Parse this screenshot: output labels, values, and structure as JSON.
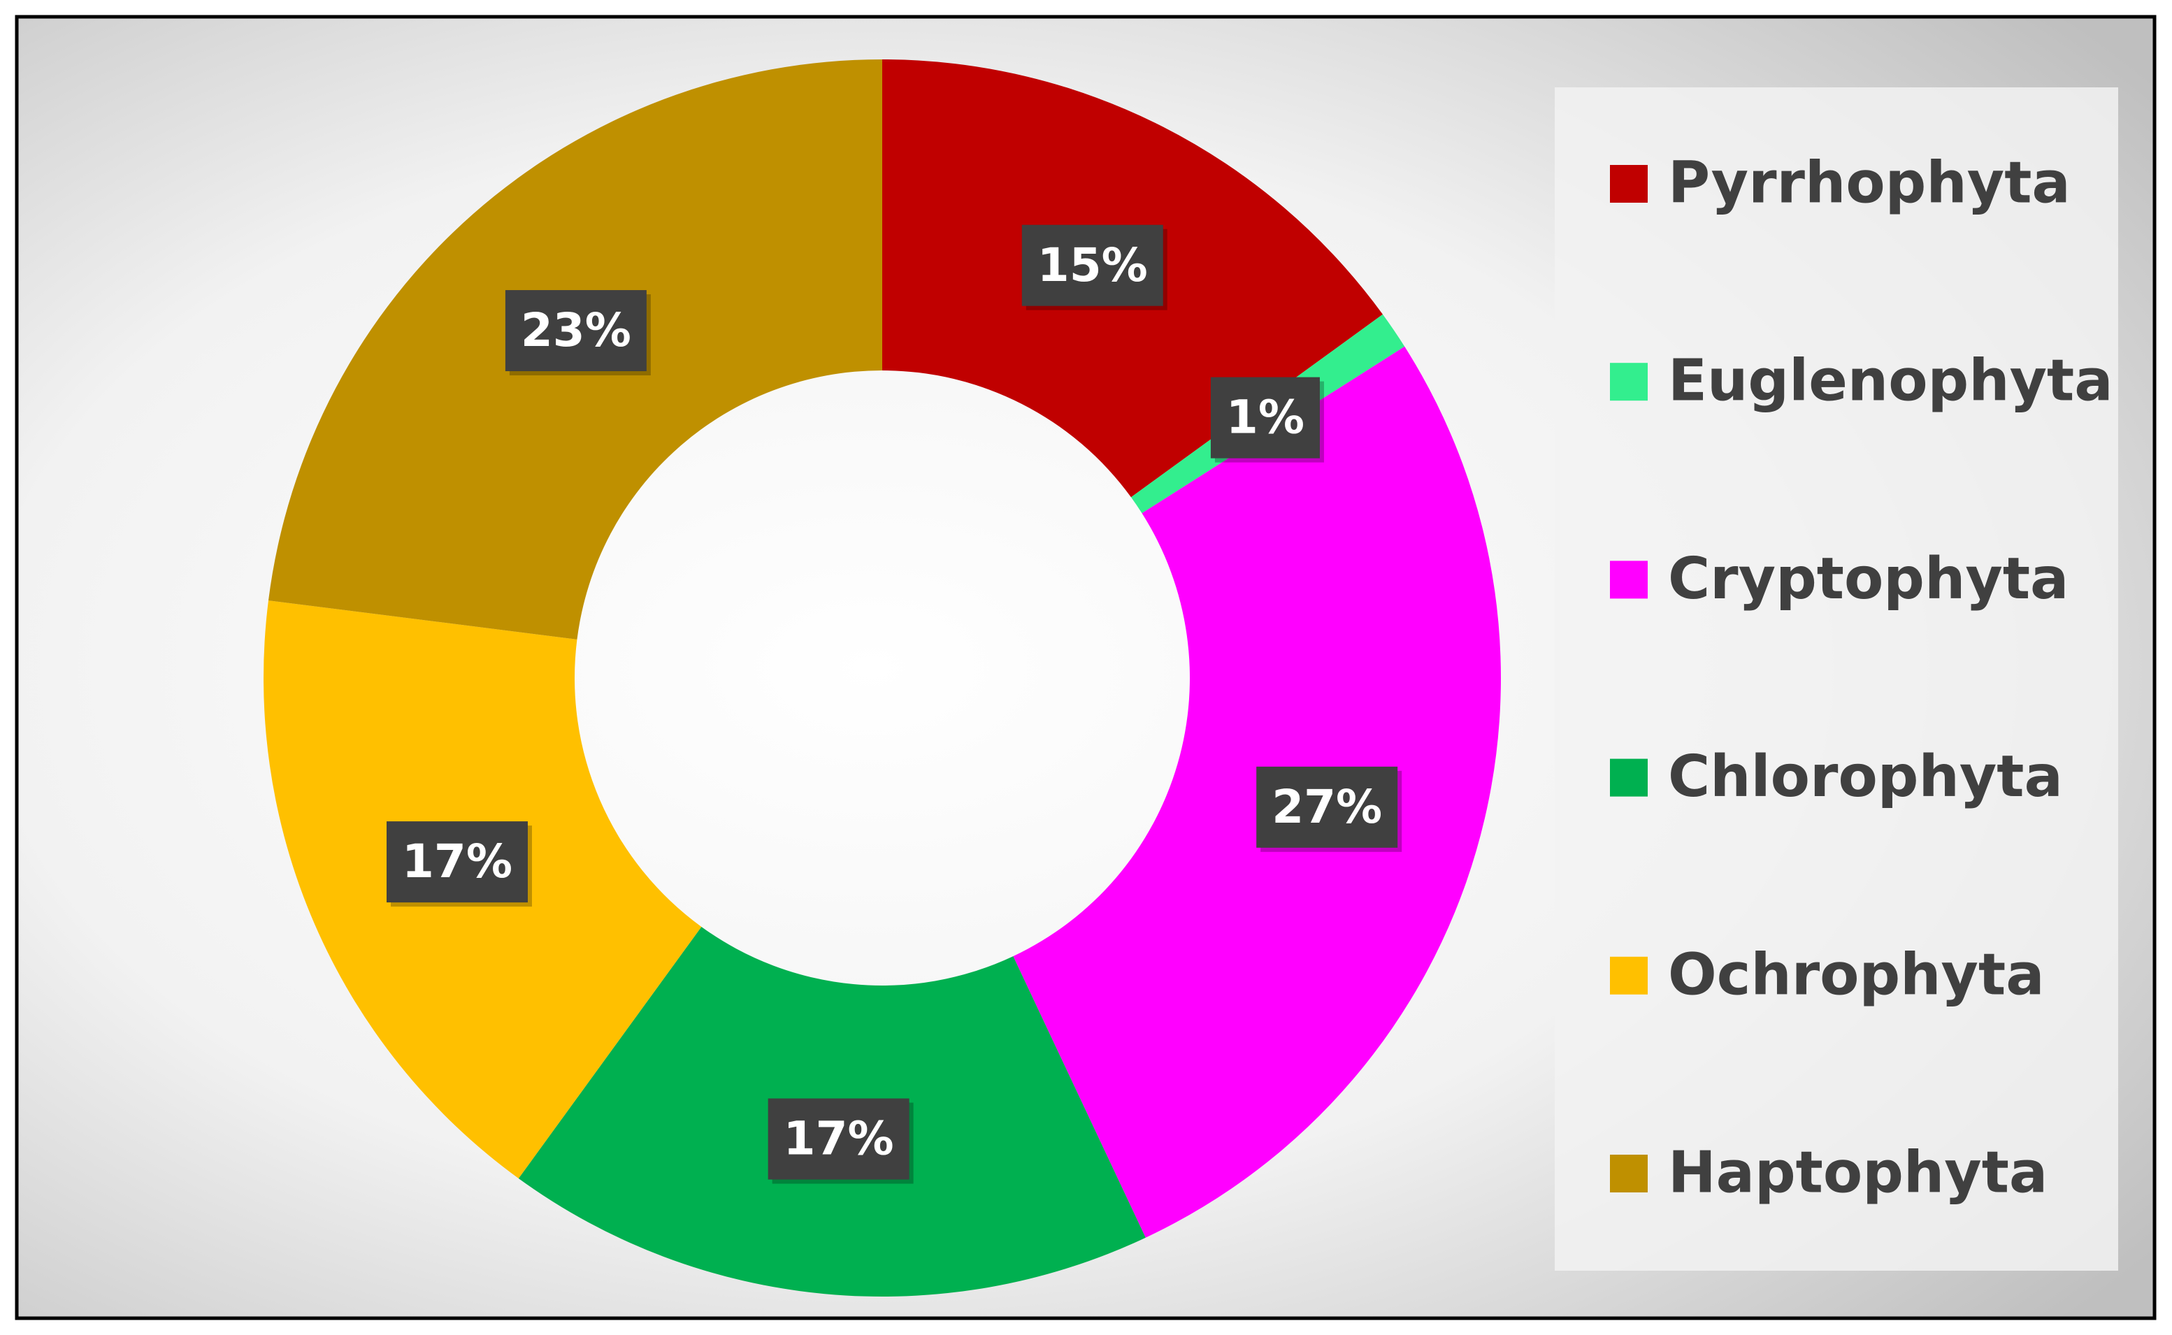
{
  "chart_data": {
    "type": "donut",
    "categories": [
      "Pyrrhophyta",
      "Euglenophyta",
      "Cryptophyta",
      "Chlorophyta",
      "Ochrophyta",
      "Haptophyta"
    ],
    "values": [
      15,
      1,
      27,
      17,
      17,
      23
    ],
    "value_labels": [
      "15%",
      "1%",
      "27%",
      "17%",
      "17%",
      "23%"
    ],
    "colors": [
      "#c00000",
      "#33ee8e",
      "#ff00ff",
      "#00b050",
      "#ffc000",
      "#bf9000"
    ],
    "legend": "right"
  }
}
